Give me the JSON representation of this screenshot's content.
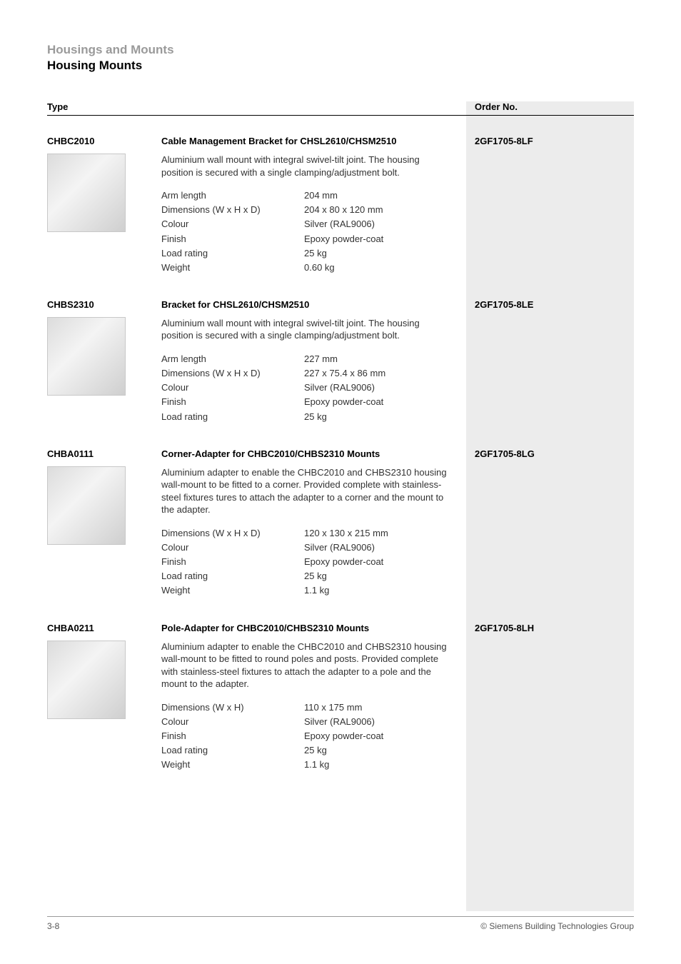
{
  "header": {
    "category": "Housings and Mounts",
    "title": "Housing Mounts"
  },
  "table_header": {
    "type": "Type",
    "order": "Order No."
  },
  "colors": {
    "ordercol_bg": "#ececec",
    "header_category": "#9a9a9a",
    "text": "#333333",
    "rule": "#000000"
  },
  "products": [
    {
      "type": "CHBC2010",
      "title": "Cable Management Bracket for CHSL2610/CHSM2510",
      "order_no": "2GF1705-8LF",
      "description": "Aluminium wall mount with integral swivel-tilt joint. The housing position is secured with a single clamping/adjustment bolt.",
      "specs": [
        {
          "label": "Arm length",
          "value": "204 mm"
        },
        {
          "label": "Dimensions (W x H x D)",
          "value": "204 x 80 x 120 mm"
        },
        {
          "label": "Colour",
          "value": "Silver (RAL9006)"
        },
        {
          "label": "Finish",
          "value": "Epoxy powder-coat"
        },
        {
          "label": "Load rating",
          "value": "25 kg"
        },
        {
          "label": "Weight",
          "value": "0.60 kg"
        }
      ]
    },
    {
      "type": "CHBS2310",
      "title": "Bracket for CHSL2610/CHSM2510",
      "order_no": "2GF1705-8LE",
      "description": "Aluminium wall mount with integral swivel-tilt joint. The housing position is secured with a single clamping/adjustment bolt.",
      "specs": [
        {
          "label": "Arm length",
          "value": "227 mm"
        },
        {
          "label": "Dimensions (W x H x D)",
          "value": "227 x 75.4 x 86 mm"
        },
        {
          "label": "Colour",
          "value": "Silver (RAL9006)"
        },
        {
          "label": "Finish",
          "value": "Epoxy powder-coat"
        },
        {
          "label": "Load rating",
          "value": "25 kg"
        }
      ]
    },
    {
      "type": "CHBA0111",
      "title": "Corner-Adapter for CHBC2010/CHBS2310 Mounts",
      "order_no": "2GF1705-8LG",
      "description": "Aluminium adapter to enable the CHBC2010 and CHBS2310 housing wall-mount to be fitted to a corner. Provided complete with stainless-steel fixtures tures to attach the adapter to a corner and the mount to the adapter.",
      "specs": [
        {
          "label": "Dimensions (W x H x D)",
          "value": "120 x 130 x 215 mm"
        },
        {
          "label": "Colour",
          "value": "Silver (RAL9006)"
        },
        {
          "label": "Finish",
          "value": "Epoxy powder-coat"
        },
        {
          "label": "Load rating",
          "value": "25 kg"
        },
        {
          "label": "Weight",
          "value": "1.1 kg"
        }
      ]
    },
    {
      "type": "CHBA0211",
      "title": "Pole-Adapter for CHBC2010/CHBS2310 Mounts",
      "order_no": "2GF1705-8LH",
      "description": "Aluminium adapter to enable the CHBC2010 and CHBS2310 housing wall-mount to be fitted to round poles and posts. Provided complete with stainless-steel fixtures to attach the adapter to a pole and the mount to the adapter.",
      "specs": [
        {
          "label": "Dimensions (W x H)",
          "value": "110 x 175 mm"
        },
        {
          "label": "Colour",
          "value": "Silver (RAL9006)"
        },
        {
          "label": "Finish",
          "value": "Epoxy powder-coat"
        },
        {
          "label": "Load rating",
          "value": "25 kg"
        },
        {
          "label": "Weight",
          "value": "1.1 kg"
        }
      ]
    }
  ],
  "footer": {
    "page": "3-8",
    "copyright": "© Siemens Building Technologies Group"
  }
}
